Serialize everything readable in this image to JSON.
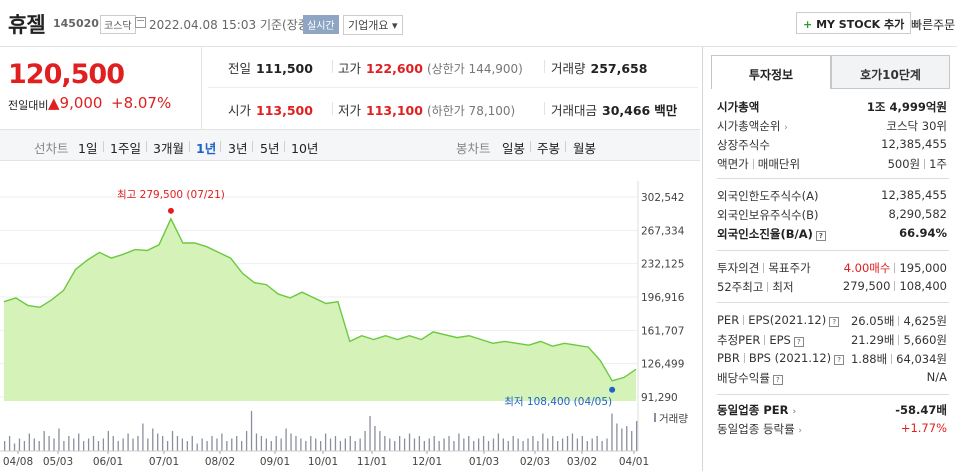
{
  "header": {
    "name": "휴젤",
    "code": "145020",
    "market": "코스닥",
    "date": "2022.04.08 15:03",
    "basis": "기준(장중)",
    "realtime": "실시간",
    "company_info": "기업개요 ▾",
    "my_stock": "MY STOCK 추가",
    "my_stock_plus": "+",
    "quick_order": "빠른주문"
  },
  "quote": {
    "price": "120,500",
    "change_label": "전일대비",
    "change_value": "▲9,000",
    "change_pct": "+8.07%",
    "prev_close_label": "전일",
    "prev_close": "111,500",
    "high_label": "고가",
    "high": "122,600",
    "upper_limit": "(상한가 144,900)",
    "volume_label": "거래량",
    "volume": "257,658",
    "open_label": "시가",
    "open": "113,500",
    "low_label": "저가",
    "low": "113,100",
    "lower_limit": "(하한가 78,100)",
    "turnover_label": "거래대금",
    "turnover": "30,466",
    "turnover_unit": "백만"
  },
  "chart_tabs": {
    "line_label": "선차트",
    "periods": [
      "1일",
      "1주일",
      "3개월",
      "1년",
      "3년",
      "5년",
      "10년"
    ],
    "active_period": "1년",
    "candle_label": "봉차트",
    "candles": [
      "일봉",
      "주봉",
      "월봉"
    ]
  },
  "chart_data": {
    "type": "area",
    "y_ticks": [
      "302,542",
      "267,334",
      "232,125",
      "196,916",
      "161,707",
      "126,499",
      "91,290"
    ],
    "y_tick_values": [
      302542,
      267334,
      232125,
      196916,
      161707,
      126499,
      91290
    ],
    "ylim": [
      91290,
      302542
    ],
    "x_ticks": [
      "04/08",
      "05/03",
      "06/01",
      "07/01",
      "08/02",
      "09/01",
      "10/01",
      "11/01",
      "12/01",
      "01/03",
      "02/03",
      "03/02",
      "04/01"
    ],
    "max_label": "최고 279,500 (07/21)",
    "min_label": "최저 108,400 (04/05)",
    "volume_label": "거래량",
    "colors": {
      "line": "#6cc93f",
      "fill": "#d5f2b8",
      "volume": "#8a8f9e",
      "max": "#e02020",
      "min": "#1e64c8"
    },
    "price_series": [
      {
        "x": "04/08",
        "y": 192000
      },
      {
        "x": "04/15",
        "y": 196000
      },
      {
        "x": "04/22",
        "y": 188000
      },
      {
        "x": "05/03",
        "y": 186000
      },
      {
        "x": "05/10",
        "y": 194000
      },
      {
        "x": "05/17",
        "y": 204000
      },
      {
        "x": "05/24",
        "y": 226000
      },
      {
        "x": "06/01",
        "y": 236000
      },
      {
        "x": "06/08",
        "y": 244000
      },
      {
        "x": "06/15",
        "y": 238000
      },
      {
        "x": "06/22",
        "y": 242000
      },
      {
        "x": "07/01",
        "y": 247000
      },
      {
        "x": "07/08",
        "y": 246000
      },
      {
        "x": "07/15",
        "y": 252000
      },
      {
        "x": "07/21",
        "y": 279500
      },
      {
        "x": "07/27",
        "y": 254000
      },
      {
        "x": "08/02",
        "y": 254000
      },
      {
        "x": "08/09",
        "y": 250000
      },
      {
        "x": "08/16",
        "y": 244000
      },
      {
        "x": "08/23",
        "y": 238000
      },
      {
        "x": "09/01",
        "y": 222000
      },
      {
        "x": "09/08",
        "y": 212000
      },
      {
        "x": "09/15",
        "y": 210000
      },
      {
        "x": "09/24",
        "y": 200000
      },
      {
        "x": "10/01",
        "y": 196000
      },
      {
        "x": "10/08",
        "y": 202000
      },
      {
        "x": "10/15",
        "y": 196000
      },
      {
        "x": "10/22",
        "y": 190000
      },
      {
        "x": "10/29",
        "y": 192000
      },
      {
        "x": "11/01",
        "y": 150000
      },
      {
        "x": "11/08",
        "y": 156000
      },
      {
        "x": "11/15",
        "y": 152000
      },
      {
        "x": "11/22",
        "y": 156000
      },
      {
        "x": "12/01",
        "y": 152000
      },
      {
        "x": "12/08",
        "y": 156000
      },
      {
        "x": "12/15",
        "y": 152000
      },
      {
        "x": "12/22",
        "y": 160000
      },
      {
        "x": "01/03",
        "y": 157000
      },
      {
        "x": "01/10",
        "y": 154000
      },
      {
        "x": "01/17",
        "y": 156000
      },
      {
        "x": "01/24",
        "y": 152000
      },
      {
        "x": "02/03",
        "y": 148000
      },
      {
        "x": "02/10",
        "y": 150000
      },
      {
        "x": "02/17",
        "y": 148000
      },
      {
        "x": "02/24",
        "y": 146000
      },
      {
        "x": "03/02",
        "y": 150000
      },
      {
        "x": "03/09",
        "y": 145000
      },
      {
        "x": "03/16",
        "y": 148000
      },
      {
        "x": "03/23",
        "y": 146000
      },
      {
        "x": "03/30",
        "y": 144000
      },
      {
        "x": "04/01",
        "y": 130000
      },
      {
        "x": "04/05",
        "y": 108400
      },
      {
        "x": "04/07",
        "y": 112000
      },
      {
        "x": "04/08",
        "y": 120500
      }
    ],
    "volume_series": [
      4,
      6,
      3,
      5,
      4,
      7,
      5,
      4,
      8,
      6,
      5,
      9,
      4,
      6,
      5,
      7,
      4,
      5,
      6,
      4,
      5,
      8,
      6,
      4,
      5,
      7,
      5,
      6,
      11,
      5,
      9,
      7,
      6,
      4,
      8,
      6,
      5,
      4,
      6,
      3,
      5,
      4,
      6,
      5,
      7,
      4,
      5,
      6,
      4,
      8,
      16,
      7,
      6,
      5,
      4,
      6,
      5,
      9,
      7,
      6,
      5,
      4,
      6,
      5,
      4,
      7,
      5,
      6,
      4,
      5,
      6,
      4,
      5,
      8,
      14,
      10,
      8,
      6,
      5,
      4,
      6,
      5,
      7,
      5,
      6,
      4,
      5,
      6,
      4,
      5,
      6,
      4,
      7,
      5,
      6,
      4,
      5,
      6,
      4,
      5,
      7,
      5,
      4,
      6,
      5,
      4,
      5,
      6,
      4,
      7,
      5,
      6,
      4,
      5,
      6,
      7,
      5,
      6,
      4,
      5,
      6,
      4,
      5,
      15,
      11,
      9,
      10,
      8,
      12
    ]
  },
  "panel": {
    "tab_invest": "투자정보",
    "tab_orderbook": "호가10단계",
    "rows": [
      {
        "k": "시가총액",
        "v": "1조 4,999억원"
      },
      {
        "k": "시가총액순위",
        "v": "코스닥 30위"
      },
      {
        "k": "상장주식수",
        "v": "12,385,455"
      },
      {
        "k": "액면가",
        "k2": "매매단위",
        "v": "500원",
        "v2": "1주"
      },
      {
        "k": "외국인한도주식수(A)",
        "v": "12,385,455"
      },
      {
        "k": "외국인보유주식수(B)",
        "v": "8,290,582"
      },
      {
        "k": "외국인소진율(B/A)",
        "v": "66.94%"
      },
      {
        "k": "투자의견",
        "k2": "목표주가",
        "v": "4.00매수",
        "v2": "195,000"
      },
      {
        "k": "52주최고",
        "k2": "최저",
        "v": "279,500",
        "v2": "108,400"
      },
      {
        "k": "PER",
        "k2": "EPS(2021.12)",
        "v": "26.05배",
        "v2": "4,625원"
      },
      {
        "k": "추정PER",
        "k2": "EPS",
        "v": "21.29배",
        "v2": "5,660원"
      },
      {
        "k": "PBR",
        "k2": "BPS (2021.12)",
        "v": "1.88배",
        "v2": "64,034원"
      },
      {
        "k": "배당수익률",
        "v": "N/A"
      },
      {
        "k": "동일업종 PER",
        "v": "-58.47배"
      },
      {
        "k": "동일업종 등락률",
        "v": "+1.77%"
      }
    ]
  }
}
